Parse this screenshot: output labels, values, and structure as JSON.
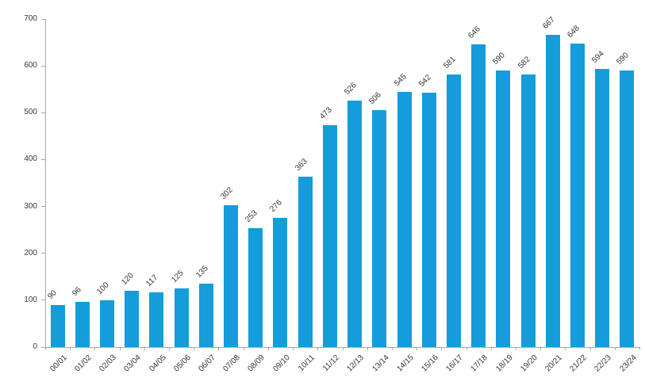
{
  "chart_data": {
    "type": "bar",
    "title": "",
    "xlabel": "",
    "ylabel": "",
    "categories": [
      "00/01",
      "01/02",
      "02/03",
      "03/04",
      "04/05",
      "05/06",
      "06/07",
      "07/08",
      "08/09",
      "09/10",
      "10/11",
      "11/12",
      "12/13",
      "13/14",
      "14/15",
      "15/16",
      "16/17",
      "17/18",
      "18/19",
      "19/20",
      "20/21",
      "21/22",
      "22/23",
      "23/24"
    ],
    "values": [
      90,
      96,
      100,
      120,
      117,
      125,
      135,
      302,
      253,
      276,
      363,
      473,
      526,
      506,
      545,
      542,
      581,
      646,
      590,
      582,
      667,
      648,
      594,
      590
    ],
    "ylim": [
      0,
      700
    ],
    "ytick_step": 100,
    "grid": "off",
    "legend": "none",
    "data_labels": "above-bars-rotated-45",
    "x_labels_rotation": "45deg",
    "colors": {
      "bar": "#149dda",
      "axis": "#a6a6a6",
      "text": "#363636",
      "background": "#ffffff"
    }
  }
}
